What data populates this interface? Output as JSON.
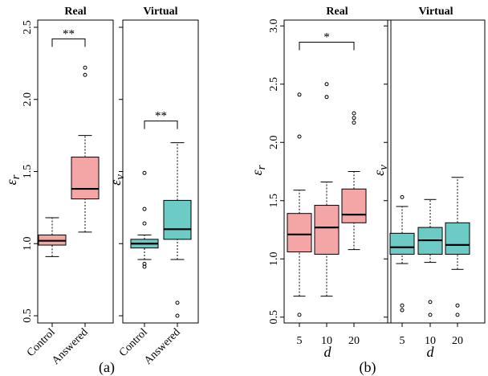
{
  "chart_data": [
    {
      "type": "box",
      "title": "Real",
      "ylabel": "ε_r",
      "ylim": [
        0.45,
        2.55
      ],
      "yticks": [
        "0.5",
        "1.0",
        "1.5",
        "2.0",
        "2.5"
      ],
      "categories": [
        "Control",
        "Answered"
      ],
      "color": "#f4a6a6",
      "boxes": [
        {
          "min": 0.91,
          "q1": 0.99,
          "median": 1.02,
          "q3": 1.06,
          "max": 1.18,
          "outliers": []
        },
        {
          "min": 1.08,
          "q1": 1.31,
          "median": 1.38,
          "q3": 1.6,
          "max": 1.75,
          "outliers": [
            2.17,
            2.22
          ]
        }
      ],
      "significance": [
        {
          "from": "Control",
          "to": "Answered",
          "label": "**",
          "y": 2.42
        }
      ]
    },
    {
      "type": "box",
      "title": "Virtual",
      "ylabel": "ε_v",
      "ylim": [
        0.45,
        2.55
      ],
      "categories": [
        "Control",
        "Answered"
      ],
      "color": "#6ccbc5",
      "boxes": [
        {
          "min": 0.89,
          "q1": 0.97,
          "median": 1.0,
          "q3": 1.03,
          "max": 1.06,
          "outliers": [
            0.84,
            0.86,
            1.14,
            1.24,
            1.49
          ]
        },
        {
          "min": 0.89,
          "q1": 1.03,
          "median": 1.1,
          "q3": 1.3,
          "max": 1.7,
          "outliers": [
            0.5,
            0.59
          ]
        }
      ],
      "significance": [
        {
          "from": "Control",
          "to": "Answered",
          "label": "**",
          "y": 1.85
        }
      ]
    },
    {
      "type": "box",
      "title": "Real",
      "ylabel": "ε_r",
      "xlabel": "d",
      "ylim": [
        0.45,
        3.05
      ],
      "yticks": [
        "0.5",
        "1.0",
        "1.5",
        "2.0",
        "2.5",
        "3.0"
      ],
      "categories": [
        "5",
        "10",
        "20"
      ],
      "color": "#f4a6a6",
      "boxes": [
        {
          "min": 0.68,
          "q1": 1.06,
          "median": 1.21,
          "q3": 1.39,
          "max": 1.59,
          "outliers": [
            0.52,
            2.05,
            2.41
          ]
        },
        {
          "min": 0.68,
          "q1": 1.04,
          "median": 1.27,
          "q3": 1.46,
          "max": 1.66,
          "outliers": [
            2.39,
            2.5
          ]
        },
        {
          "min": 1.08,
          "q1": 1.31,
          "median": 1.38,
          "q3": 1.6,
          "max": 1.75,
          "outliers": [
            2.17,
            2.21,
            2.25
          ]
        }
      ],
      "significance": [
        {
          "from": "5",
          "to": "20",
          "label": "*",
          "y": 2.86
        }
      ]
    },
    {
      "type": "box",
      "title": "Virtual",
      "ylabel": "ε_v",
      "xlabel": "d",
      "ylim": [
        0.45,
        3.05
      ],
      "categories": [
        "5",
        "10",
        "20"
      ],
      "color": "#6ccbc5",
      "boxes": [
        {
          "min": 0.96,
          "q1": 1.04,
          "median": 1.1,
          "q3": 1.22,
          "max": 1.45,
          "outliers": [
            0.56,
            0.6,
            1.53
          ]
        },
        {
          "min": 0.97,
          "q1": 1.04,
          "median": 1.16,
          "q3": 1.27,
          "max": 1.51,
          "outliers": [
            0.52,
            0.63
          ]
        },
        {
          "min": 0.91,
          "q1": 1.04,
          "median": 1.12,
          "q3": 1.31,
          "max": 1.7,
          "outliers": [
            0.52,
            0.6
          ]
        }
      ],
      "significance": []
    }
  ],
  "panel_labels": [
    "(a)",
    "(b)"
  ]
}
